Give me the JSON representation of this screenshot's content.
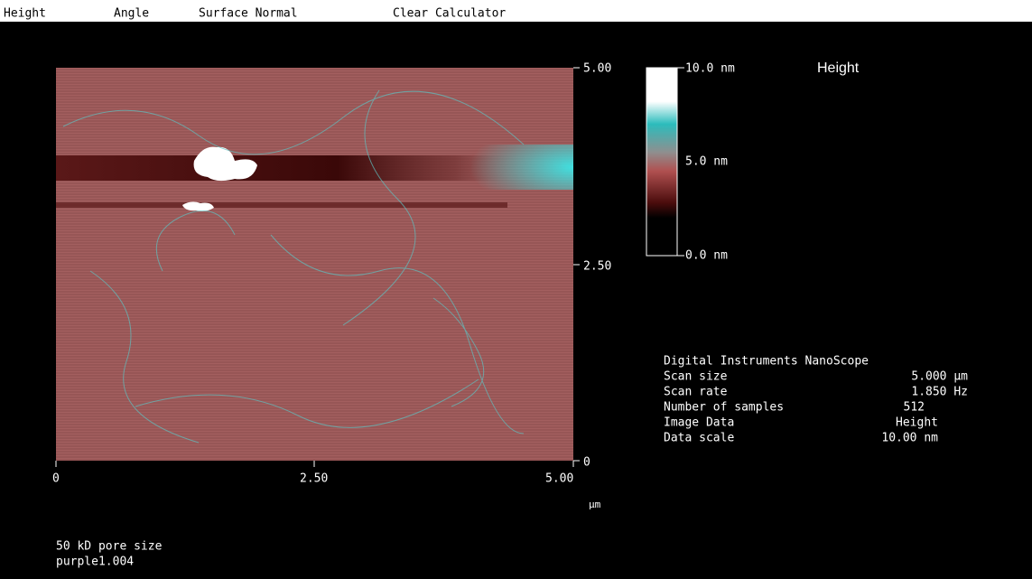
{
  "menu": [
    "Height",
    "Angle",
    "Surface Normal",
    "Clear Calculator"
  ],
  "image": {
    "y_axis_labels": [
      "5.00",
      "2.50",
      "0"
    ],
    "x_axis_labels": [
      "0",
      "2.50",
      "5.00"
    ],
    "x_unit": "µm"
  },
  "color_scale": {
    "title": "Height",
    "labels": [
      "10.0 nm",
      "5.0 nm",
      "0.0 nm"
    ]
  },
  "info": {
    "header": "Digital Instruments NanoScope",
    "rows": [
      [
        "Scan size",
        "5.000 µm"
      ],
      [
        "Scan rate",
        "1.850 Hz"
      ],
      [
        "Number of samples",
        "512"
      ],
      [
        "Image Data",
        "Height"
      ],
      [
        "Data scale",
        "10.00 nm"
      ]
    ]
  },
  "footer": [
    "50 kD pore size",
    "purple1.004"
  ]
}
